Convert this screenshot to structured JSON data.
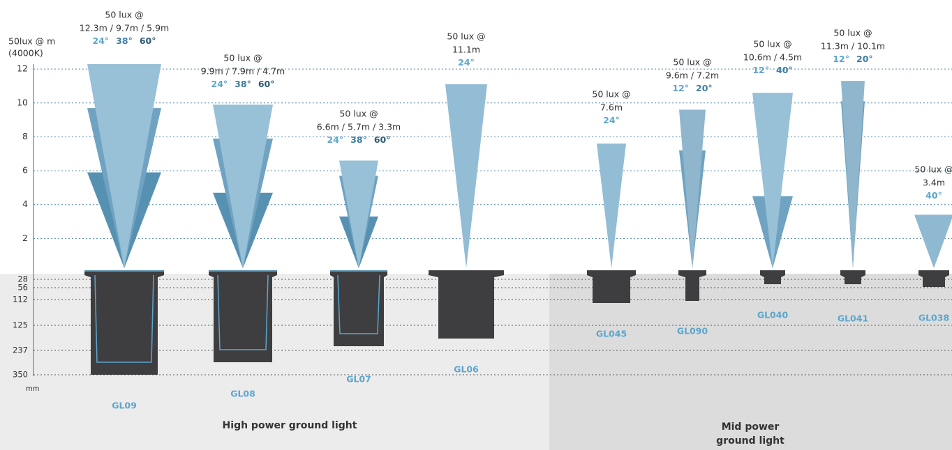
{
  "chart_data": {
    "type": "beam",
    "ylabel": [
      "50lux @ m",
      "(4000K)"
    ],
    "ylim": [
      0,
      12.5
    ],
    "yticks": [
      2,
      4,
      6,
      8,
      10,
      12
    ],
    "grid": true,
    "depth_ticks": [
      28,
      56,
      112,
      125,
      237,
      350
    ],
    "depth_unit": "mm",
    "groups": [
      "High power ground light",
      "Mid power ground light"
    ],
    "products": [
      {
        "name": "GL09",
        "lux": "50 lux @",
        "distances": "12.3m / 9.7m / 5.9m",
        "beams": [
          {
            "angle": "24°",
            "value": 12.3,
            "color": "#98c0d6",
            "label_color": "#5ba6cf"
          },
          {
            "angle": "38°",
            "value": 9.7,
            "color": "#6fa3c1",
            "label_color": "#3f7d9f"
          },
          {
            "angle": "60°",
            "value": 5.9,
            "color": "#5791b2",
            "label_color": "#2e5c75"
          }
        ]
      },
      {
        "name": "GL08",
        "lux": "50 lux @",
        "distances": "9.9m / 7.9m / 4.7m",
        "beams": [
          {
            "angle": "24°",
            "value": 9.9,
            "color": "#98c0d6",
            "label_color": "#5ba6cf"
          },
          {
            "angle": "38°",
            "value": 7.9,
            "color": "#6fa3c1",
            "label_color": "#3f7d9f"
          },
          {
            "angle": "60°",
            "value": 4.7,
            "color": "#5791b2",
            "label_color": "#2e5c75"
          }
        ]
      },
      {
        "name": "GL07",
        "lux": "50 lux @",
        "distances": "6.6m / 5.7m / 3.3m",
        "beams": [
          {
            "angle": "24°",
            "value": 6.6,
            "color": "#98c0d6",
            "label_color": "#5ba6cf"
          },
          {
            "angle": "38°",
            "value": 5.7,
            "color": "#6fa3c1",
            "label_color": "#3f7d9f"
          },
          {
            "angle": "60°",
            "value": 3.3,
            "color": "#5791b2",
            "label_color": "#2e5c75"
          }
        ]
      },
      {
        "name": "GL06",
        "lux": "50 lux @",
        "distances": "11.1m",
        "beams": [
          {
            "angle": "24°",
            "value": 11.1,
            "color": "#92bdd5",
            "label_color": "#5ba6cf"
          }
        ]
      },
      {
        "name": "GL045",
        "lux": "50 lux @",
        "distances": "7.6m",
        "beams": [
          {
            "angle": "24°",
            "value": 7.6,
            "color": "#92bdd5",
            "label_color": "#5ba6cf"
          }
        ]
      },
      {
        "name": "GL090",
        "lux": "50 lux @",
        "distances": "9.6m / 7.2m",
        "beams": [
          {
            "angle": "12°",
            "value": 9.6,
            "color": "#8fb6cc",
            "label_color": "#5ba6cf"
          },
          {
            "angle": "20°",
            "value": 7.2,
            "color": "#6fa3c1",
            "label_color": "#3f7d9f"
          }
        ]
      },
      {
        "name": "GL040",
        "lux": "50 lux @",
        "distances": "10.6m / 4.5m",
        "beams": [
          {
            "angle": "12°",
            "value": 10.6,
            "color": "#98c0d6",
            "label_color": "#5ba6cf"
          },
          {
            "angle": "40°",
            "value": 4.5,
            "color": "#6fa3c1",
            "label_color": "#3f7d9f"
          }
        ]
      },
      {
        "name": "GL041",
        "lux": "50 lux @",
        "distances": "11.3m / 10.1m",
        "beams": [
          {
            "angle": "12°",
            "value": 11.3,
            "color": "#8fb6cc",
            "label_color": "#5ba6cf"
          },
          {
            "angle": "20°",
            "value": 10.1,
            "color": "#6fa3c1",
            "label_color": "#3f7d9f"
          }
        ]
      },
      {
        "name": "GL038",
        "lux": "50 lux @",
        "distances": "3.4m",
        "beams": [
          {
            "angle": "40°",
            "value": 3.4,
            "color": "#8fb9d1",
            "label_color": "#5ba6cf"
          }
        ]
      }
    ]
  }
}
